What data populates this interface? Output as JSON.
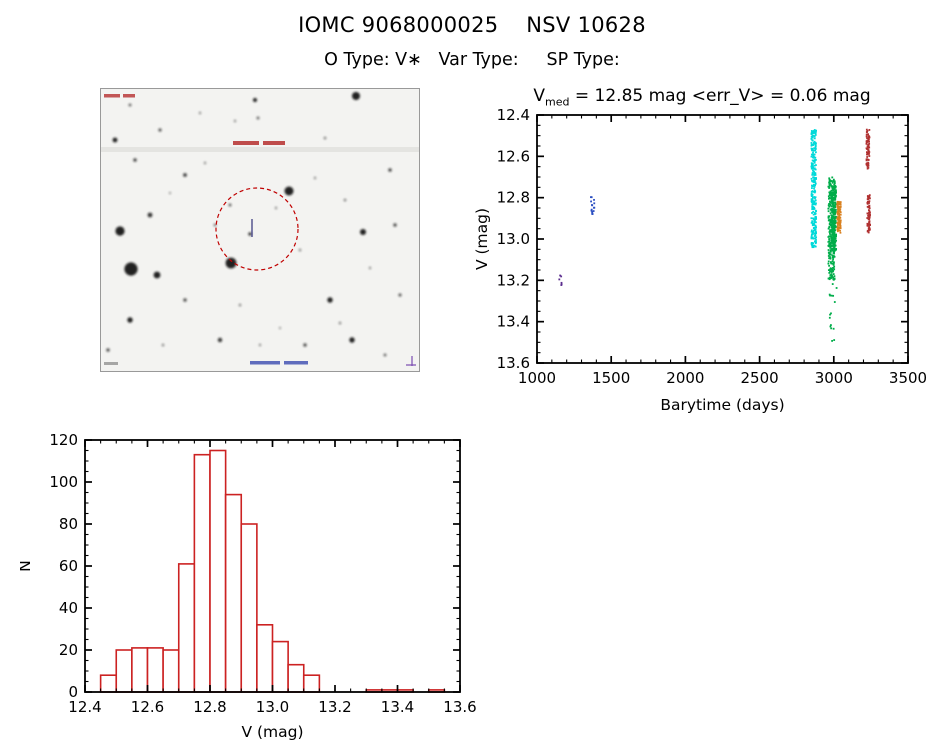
{
  "page": {
    "title": "IOMC 9068000025    NSV 10628",
    "subtitle": "O Type: V∗   Var Type:     SP Type:"
  },
  "lightcurve_title": {
    "v": "V",
    "sub": "med",
    "rest": " = 12.85 mag <err_V> = 0.06 mag"
  },
  "finding_chart": {
    "description": "grayscale optical finding chart with target circled",
    "background": "#f3f3f1",
    "circle_color": "#c00000",
    "annotation_color": "#b22222",
    "marker_color": "#4a4a8a"
  },
  "chart_data": [
    {
      "name": "lightcurve",
      "type": "scatter",
      "title": "Vmed = 12.85 mag <err_V> = 0.06 mag",
      "xlabel": "Barytime (days)",
      "ylabel": "V (mag)",
      "xlim": [
        1000,
        3500
      ],
      "ylim": [
        12.4,
        13.6
      ],
      "y_inverted": true,
      "grid": false,
      "xtick_values": [
        1000,
        1500,
        2000,
        2500,
        3000,
        3500
      ],
      "xtick_labels": [
        "1000",
        "1500",
        "2000",
        "2500",
        "3000",
        "3500"
      ],
      "ytick_values": [
        12.4,
        12.6,
        12.8,
        13.0,
        13.2,
        13.4,
        13.6
      ],
      "ytick_labels": [
        "12.4",
        "12.6",
        "12.8",
        "13.0",
        "13.2",
        "13.4",
        "13.6"
      ],
      "x_minor_step": 100,
      "y_minor_step": 0.05,
      "clusters": [
        {
          "x": 1160,
          "x_spread": 10,
          "y_min": 13.17,
          "y_max": 13.23,
          "n": 6,
          "color": "#5b2d8e"
        },
        {
          "x": 1375,
          "x_spread": 14,
          "y_min": 12.79,
          "y_max": 12.88,
          "n": 16,
          "color": "#2b4fc2"
        },
        {
          "x": 2865,
          "x_spread": 16,
          "y_min": 12.47,
          "y_max": 13.04,
          "n": 280,
          "color": "#00d9d9"
        },
        {
          "x": 2985,
          "x_spread": 22,
          "y_min": 12.7,
          "y_max": 13.2,
          "n": 280,
          "color": "#00ad4a"
        },
        {
          "x": 3000,
          "x_spread": 16,
          "y_min": 12.74,
          "y_max": 13.06,
          "n": 220,
          "color": "#00ad4a"
        },
        {
          "x": 2995,
          "x_spread": 24,
          "y_min": 13.2,
          "y_max": 13.5,
          "n": 16,
          "color": "#00ad4a"
        },
        {
          "x": 3035,
          "x_spread": 12,
          "y_min": 12.82,
          "y_max": 12.97,
          "n": 110,
          "color": "#d98120"
        },
        {
          "x": 3230,
          "x_spread": 10,
          "y_min": 12.47,
          "y_max": 12.66,
          "n": 70,
          "color": "#b03030"
        },
        {
          "x": 3235,
          "x_spread": 10,
          "y_min": 12.78,
          "y_max": 12.97,
          "n": 70,
          "color": "#b03030"
        }
      ]
    },
    {
      "name": "histogram",
      "type": "bar",
      "xlabel": "V (mag)",
      "ylabel": "N",
      "xlim": [
        12.4,
        13.6
      ],
      "ylim": [
        0,
        120
      ],
      "grid": false,
      "xtick_values": [
        12.4,
        12.6,
        12.8,
        13.0,
        13.2,
        13.4,
        13.6
      ],
      "xtick_labels": [
        "12.4",
        "12.6",
        "12.8",
        "13.0",
        "13.2",
        "13.4",
        "13.6"
      ],
      "ytick_values": [
        0,
        20,
        40,
        60,
        80,
        100,
        120
      ],
      "ytick_labels": [
        "0",
        "20",
        "40",
        "60",
        "80",
        "100",
        "120"
      ],
      "x_minor_step": 0.05,
      "y_minor_step": 5,
      "bin_start": 12.45,
      "bin_width": 0.05,
      "counts": [
        8,
        20,
        21,
        21,
        20,
        61,
        113,
        115,
        94,
        80,
        32,
        24,
        13,
        8,
        0,
        0,
        0,
        1,
        1,
        1,
        0,
        1
      ],
      "bar_color": "#cc2222"
    }
  ]
}
